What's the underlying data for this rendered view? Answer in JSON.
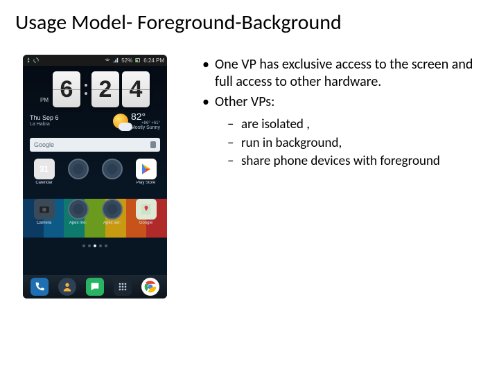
{
  "title": "Usage Model- Foreground-Background",
  "bullets": {
    "b1": "One VP has exclusive access to the screen and full access to other hardware.",
    "b2": "Other VPs:",
    "sub1": "are isolated ,",
    "sub2": " run in background,",
    "sub3": "  share phone devices with foreground"
  },
  "phone": {
    "statusbar": {
      "battery": "52%",
      "time": "6:24 PM"
    },
    "clock": {
      "h1": "6",
      "h2": "",
      "m1": "2",
      "m2": "4",
      "ampm": "PM"
    },
    "date": {
      "line1": "Thu Sep 6",
      "line2": "La Habra"
    },
    "weather": {
      "temp": "82°",
      "hilo": "+86°\n+61°",
      "cond": "Mostly Sunny"
    },
    "search": {
      "placeholder": "Google"
    },
    "apps_row1": [
      {
        "label": "Calendar",
        "icon": "calendar",
        "text": "31",
        "bg": "#ecebe8"
      },
      {
        "label": "",
        "icon": "ring",
        "text": "",
        "bg": "#000"
      },
      {
        "label": "",
        "icon": "ring",
        "text": "",
        "bg": "#000"
      },
      {
        "label": "Play Store",
        "icon": "play",
        "text": "",
        "bg": "#fff"
      }
    ],
    "apps_row2": [
      {
        "label": "Camera",
        "icon": "camera",
        "text": "",
        "bg": "#3a4a58"
      },
      {
        "label": "Apex me:",
        "icon": "ring",
        "text": "",
        "bg": "#000"
      },
      {
        "label": "Apex set:",
        "icon": "ring",
        "text": "",
        "bg": "#000"
      },
      {
        "label": "Google",
        "icon": "maps",
        "text": "",
        "bg": "#dfe7d7"
      }
    ],
    "stripe_colors": [
      "#0b3a63",
      "#0d5a86",
      "#0e7a6e",
      "#6a9a1e",
      "#c79a12",
      "#c7531a",
      "#b02a2a"
    ],
    "dock": [
      {
        "name": "phone",
        "bg": "#1f6fb2"
      },
      {
        "name": "contacts",
        "bg": "#2e4053"
      },
      {
        "name": "messages",
        "bg": "#28b463"
      },
      {
        "name": "app-drawer",
        "bg": "#1b2631"
      },
      {
        "name": "chrome",
        "bg": "#ffffff"
      }
    ]
  },
  "colors": {
    "text": "#000000",
    "slide_bg": "#ffffff"
  }
}
